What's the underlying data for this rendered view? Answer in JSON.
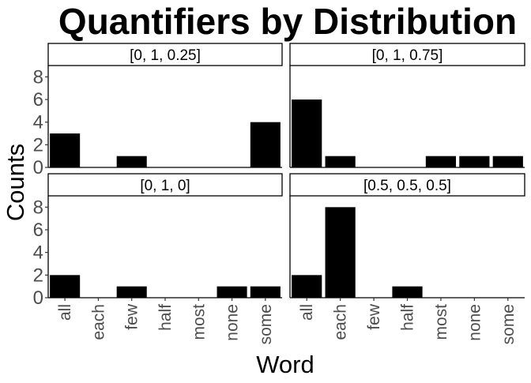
{
  "chart_data": {
    "type": "bar",
    "title": "Quantifiers by Distribution",
    "xlabel": "Word",
    "ylabel": "Counts",
    "categories": [
      "all",
      "each",
      "few",
      "half",
      "most",
      "none",
      "some"
    ],
    "ylim": [
      0,
      9
    ],
    "yticks": [
      0,
      2,
      4,
      6,
      8
    ],
    "grid": false,
    "bar_color": "#000000",
    "facets": [
      {
        "label": "[0, 1, 0.25]",
        "values": [
          3,
          0,
          1,
          0,
          0,
          0,
          4
        ]
      },
      {
        "label": "[0, 1, 0.75]",
        "values": [
          6,
          1,
          0,
          0,
          1,
          1,
          1
        ]
      },
      {
        "label": "[0, 1, 0]",
        "values": [
          2,
          0,
          1,
          0,
          0,
          1,
          1
        ]
      },
      {
        "label": "[0.5, 0.5, 0.5]",
        "values": [
          2,
          8,
          0,
          1,
          0,
          0,
          0
        ]
      }
    ]
  }
}
